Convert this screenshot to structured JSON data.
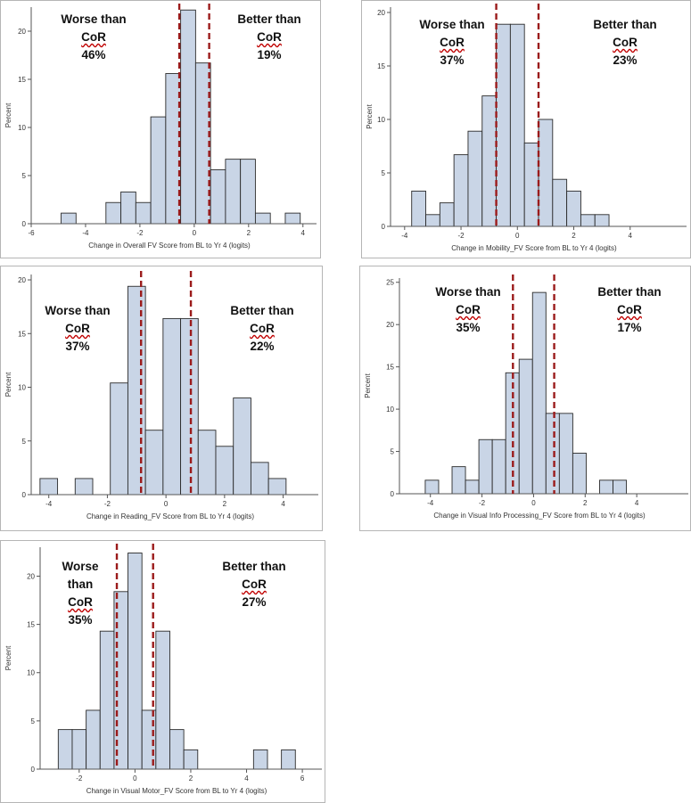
{
  "colors": {
    "bar_fill": "#c9d5e6",
    "bar_stroke": "#2b2b2b",
    "cutoff": "#9b1b1b",
    "axis": "#555555",
    "text": "#333333"
  },
  "chart_data": [
    {
      "type": "histogram",
      "xlabel": "Change in Overall FV Score from BL to Yr 4 (logits)",
      "ylabel": "Percent",
      "xlim": [
        -6,
        4.5
      ],
      "ylim": [
        0,
        22.5
      ],
      "xticks": [
        -6,
        -4,
        -2,
        0,
        2,
        4
      ],
      "yticks": [
        0,
        5,
        10,
        15,
        20
      ],
      "bin_width": 0.55,
      "bin_starts": [
        -4.9,
        -3.25,
        -2.7,
        -2.15,
        -1.6,
        -1.05,
        -0.5,
        0.05,
        0.6,
        1.15,
        1.7,
        2.25,
        3.35
      ],
      "values": [
        1.1,
        2.2,
        3.3,
        2.2,
        11.1,
        15.6,
        22.2,
        16.7,
        5.6,
        6.7,
        6.7,
        1.1,
        1.1
      ],
      "cutoffs": [
        -0.55,
        0.55
      ],
      "worse_label": "Worse than",
      "better_label": "Better than",
      "cor_label_left": "CoR",
      "cor_label_right": "CoR",
      "worse_pct": "46%",
      "better_pct": "19%"
    },
    {
      "type": "histogram",
      "xlabel": "Change in Mobility_FV Score from BL to Yr 4 (logits)",
      "ylabel": "Percent",
      "xlim": [
        -4.5,
        6
      ],
      "ylim": [
        0,
        20.5
      ],
      "xticks": [
        -4,
        -2,
        0,
        2,
        4
      ],
      "yticks": [
        0,
        5,
        10,
        15,
        20
      ],
      "bin_width": 0.5,
      "bin_starts": [
        -3.75,
        -3.25,
        -2.75,
        -2.25,
        -1.75,
        -1.25,
        -0.75,
        -0.25,
        0.25,
        0.75,
        1.25,
        1.75,
        2.25,
        2.75
      ],
      "values": [
        3.3,
        1.1,
        2.2,
        6.7,
        8.9,
        12.2,
        18.9,
        18.9,
        7.8,
        10.0,
        4.4,
        3.3,
        1.1,
        1.1
      ],
      "cutoffs": [
        -0.75,
        0.75
      ],
      "worse_label": "Worse than",
      "better_label": "Better than",
      "cor_label_left": "CoR",
      "cor_label_right": "CoR",
      "worse_pct": "37%",
      "better_pct": "23%"
    },
    {
      "type": "histogram",
      "xlabel": "Change in Reading_FV Score from BL to Yr 4 (logits)",
      "ylabel": "Percent",
      "xlim": [
        -4.6,
        5.2
      ],
      "ylim": [
        0,
        20.5
      ],
      "xticks": [
        -4,
        -2,
        0,
        2,
        4
      ],
      "yticks": [
        0,
        5,
        10,
        15,
        20
      ],
      "bin_width": 0.6,
      "bin_starts": [
        -4.3,
        -3.1,
        -1.9,
        -1.3,
        -0.7,
        -0.1,
        0.5,
        1.1,
        1.7,
        2.3,
        2.9,
        3.5
      ],
      "values": [
        1.5,
        1.5,
        10.4,
        19.4,
        6.0,
        16.4,
        16.4,
        6.0,
        4.5,
        9.0,
        3.0,
        1.5
      ],
      "cutoffs": [
        -0.85,
        0.85
      ],
      "worse_label": "Worse than",
      "better_label": "Better than",
      "cor_label_left": "CoR",
      "cor_label_right": "CoR",
      "worse_pct": "37%",
      "better_pct": "22%"
    },
    {
      "type": "histogram",
      "xlabel": "Change in Visual Info Processing_FV Score from BL to Yr 4 (logits)",
      "ylabel": "Percent",
      "xlim": [
        -5.2,
        6
      ],
      "ylim": [
        0,
        25.5
      ],
      "xticks": [
        -4,
        -2,
        0,
        2,
        4
      ],
      "yticks": [
        0,
        5,
        10,
        15,
        20,
        25
      ],
      "bin_width": 0.52,
      "bin_starts": [
        -4.2,
        -3.16,
        -2.64,
        -2.12,
        -1.6,
        -1.08,
        -0.56,
        -0.04,
        0.48,
        1.0,
        1.52,
        2.56,
        3.08
      ],
      "values": [
        1.6,
        3.2,
        1.6,
        6.4,
        6.4,
        14.3,
        15.9,
        23.8,
        9.5,
        9.5,
        4.8,
        1.6,
        1.6
      ],
      "cutoffs": [
        -0.8,
        0.8
      ],
      "worse_label": "Worse than",
      "better_label": "Better than",
      "cor_label_left": "CoR",
      "cor_label_right": "CoR",
      "worse_pct": "35%",
      "better_pct": "17%"
    },
    {
      "type": "histogram",
      "xlabel": "Change in Visual Motor_FV Score from BL to Yr 4 (logits)",
      "ylabel": "Percent",
      "xlim": [
        -3.4,
        6.7
      ],
      "ylim": [
        0,
        23
      ],
      "xticks": [
        -2,
        0,
        2,
        4,
        6
      ],
      "yticks": [
        0,
        5,
        10,
        15,
        20
      ],
      "bin_width": 0.5,
      "bin_starts": [
        -2.75,
        -2.25,
        -1.75,
        -1.25,
        -0.75,
        -0.25,
        0.25,
        0.75,
        1.25,
        1.75,
        4.25,
        5.25
      ],
      "values": [
        4.1,
        4.1,
        6.1,
        14.3,
        18.4,
        22.4,
        6.1,
        14.3,
        4.1,
        2.0,
        2.0,
        2.0
      ],
      "cutoffs": [
        -0.65,
        0.65
      ],
      "worse_label": "Worse",
      "worse_label_2": "than",
      "better_label": "Better than",
      "cor_label_left": "CoR",
      "cor_label_right": "CoR",
      "worse_pct": "35%",
      "better_pct": "27%"
    }
  ]
}
